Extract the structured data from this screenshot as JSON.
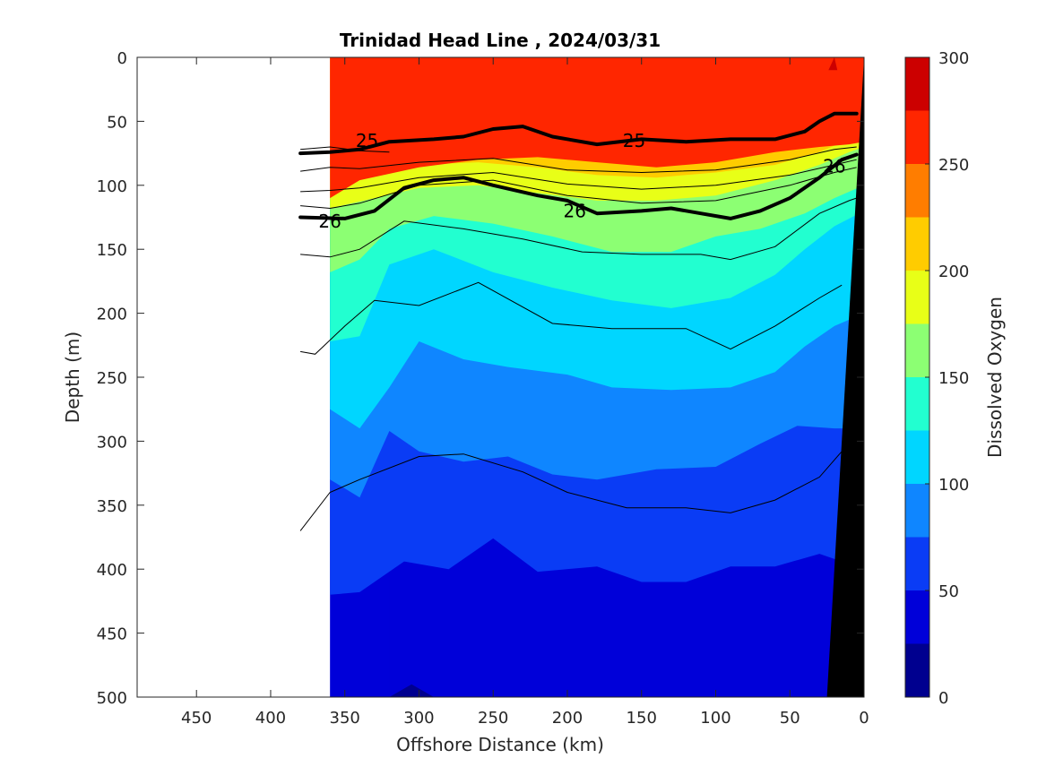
{
  "chart_data": {
    "type": "heatmap",
    "title": "Trinidad Head Line , 2024/03/31",
    "xlabel": "Offshore Distance (km)",
    "ylabel": "Depth (m)",
    "colorbar_label": "Dissolved Oxygen",
    "xlim": [
      490,
      0
    ],
    "ylim": [
      500,
      0
    ],
    "x_ticks": [
      {
        "value": 450,
        "label": "450"
      },
      {
        "value": 400,
        "label": "400"
      },
      {
        "value": 350,
        "label": "350"
      },
      {
        "value": 300,
        "label": "300"
      },
      {
        "value": 250,
        "label": "250"
      },
      {
        "value": 200,
        "label": "200"
      },
      {
        "value": 150,
        "label": "150"
      },
      {
        "value": 100,
        "label": "100"
      },
      {
        "value": 50,
        "label": "50"
      },
      {
        "value": 0,
        "label": "0"
      }
    ],
    "y_ticks": [
      {
        "value": 0,
        "label": "0"
      },
      {
        "value": 50,
        "label": "50"
      },
      {
        "value": 100,
        "label": "100"
      },
      {
        "value": 150,
        "label": "150"
      },
      {
        "value": 200,
        "label": "200"
      },
      {
        "value": 250,
        "label": "250"
      },
      {
        "value": 300,
        "label": "300"
      },
      {
        "value": 350,
        "label": "350"
      },
      {
        "value": 400,
        "label": "400"
      },
      {
        "value": 450,
        "label": "450"
      },
      {
        "value": 500,
        "label": "500"
      }
    ],
    "colorbar": {
      "range": [
        0,
        300
      ],
      "levels": [
        0,
        25,
        50,
        75,
        100,
        125,
        150,
        175,
        200,
        225,
        250,
        275,
        300
      ],
      "ticks": [
        {
          "value": 0,
          "label": "0"
        },
        {
          "value": 50,
          "label": "50"
        },
        {
          "value": 100,
          "label": "100"
        },
        {
          "value": 150,
          "label": "150"
        },
        {
          "value": 200,
          "label": "200"
        },
        {
          "value": 250,
          "label": "250"
        },
        {
          "value": 300,
          "label": "300"
        }
      ],
      "colors": [
        "#00008f",
        "#0000d9",
        "#0a3cf5",
        "#0f86ff",
        "#00d6ff",
        "#22ffd0",
        "#8cff73",
        "#e8ff17",
        "#ffcc00",
        "#ff7d00",
        "#ff2600",
        "#cc0000"
      ]
    },
    "data_extent_x": [
      0,
      360
    ],
    "oxygen_boundaries": [
      {
        "level": 275,
        "points": [
          [
            20,
            0
          ],
          [
            18,
            10
          ],
          [
            24,
            10
          ]
        ]
      },
      {
        "level": 250,
        "points": [
          [
            360,
            110
          ],
          [
            340,
            96
          ],
          [
            300,
            86
          ],
          [
            260,
            80
          ],
          [
            220,
            78
          ],
          [
            180,
            82
          ],
          [
            140,
            86
          ],
          [
            100,
            82
          ],
          [
            60,
            74
          ],
          [
            30,
            70
          ],
          [
            10,
            68
          ],
          [
            0,
            66
          ]
        ]
      },
      {
        "level": 225,
        "points": [
          [
            360,
            84
          ],
          [
            340,
            82
          ],
          [
            300,
            74
          ],
          [
            260,
            66
          ],
          [
            220,
            68
          ],
          [
            180,
            74
          ],
          [
            140,
            74
          ],
          [
            100,
            72
          ],
          [
            60,
            68
          ],
          [
            30,
            56
          ],
          [
            10,
            46
          ],
          [
            0,
            44
          ]
        ]
      },
      {
        "level": 200,
        "points": [
          [
            360,
            96
          ],
          [
            340,
            92
          ],
          [
            300,
            84
          ],
          [
            260,
            82
          ],
          [
            220,
            86
          ],
          [
            180,
            92
          ],
          [
            140,
            94
          ],
          [
            100,
            90
          ],
          [
            60,
            84
          ],
          [
            30,
            74
          ],
          [
            10,
            64
          ],
          [
            0,
            60
          ]
        ]
      },
      {
        "level": 175,
        "points": [
          [
            360,
            118
          ],
          [
            330,
            110
          ],
          [
            300,
            102
          ],
          [
            260,
            100
          ],
          [
            220,
            106
          ],
          [
            180,
            112
          ],
          [
            140,
            112
          ],
          [
            100,
            108
          ],
          [
            60,
            96
          ],
          [
            30,
            84
          ],
          [
            10,
            74
          ],
          [
            0,
            70
          ]
        ]
      },
      {
        "level": 150,
        "points": [
          [
            360,
            168
          ],
          [
            340,
            158
          ],
          [
            320,
            134
          ],
          [
            290,
            124
          ],
          [
            250,
            130
          ],
          [
            210,
            140
          ],
          [
            170,
            152
          ],
          [
            130,
            152
          ],
          [
            100,
            140
          ],
          [
            70,
            134
          ],
          [
            40,
            122
          ],
          [
            20,
            110
          ],
          [
            0,
            100
          ]
        ]
      },
      {
        "level": 125,
        "points": [
          [
            360,
            222
          ],
          [
            340,
            218
          ],
          [
            320,
            162
          ],
          [
            290,
            150
          ],
          [
            250,
            168
          ],
          [
            210,
            180
          ],
          [
            170,
            190
          ],
          [
            130,
            196
          ],
          [
            90,
            188
          ],
          [
            60,
            170
          ],
          [
            40,
            150
          ],
          [
            20,
            132
          ],
          [
            0,
            120
          ]
        ]
      },
      {
        "level": 100,
        "points": [
          [
            360,
            275
          ],
          [
            340,
            290
          ],
          [
            320,
            258
          ],
          [
            300,
            222
          ],
          [
            270,
            236
          ],
          [
            240,
            242
          ],
          [
            200,
            248
          ],
          [
            170,
            258
          ],
          [
            130,
            260
          ],
          [
            90,
            258
          ],
          [
            60,
            246
          ],
          [
            40,
            226
          ],
          [
            20,
            210
          ],
          [
            0,
            200
          ]
        ]
      },
      {
        "level": 75,
        "points": [
          [
            360,
            330
          ],
          [
            340,
            344
          ],
          [
            320,
            292
          ],
          [
            300,
            308
          ],
          [
            270,
            316
          ],
          [
            240,
            312
          ],
          [
            210,
            326
          ],
          [
            180,
            330
          ],
          [
            140,
            322
          ],
          [
            100,
            320
          ],
          [
            70,
            302
          ],
          [
            45,
            288
          ],
          [
            20,
            290
          ],
          [
            0,
            290
          ]
        ]
      },
      {
        "level": 50,
        "points": [
          [
            360,
            420
          ],
          [
            340,
            418
          ],
          [
            310,
            394
          ],
          [
            280,
            400
          ],
          [
            250,
            376
          ],
          [
            220,
            402
          ],
          [
            180,
            398
          ],
          [
            150,
            410
          ],
          [
            120,
            410
          ],
          [
            90,
            398
          ],
          [
            60,
            398
          ],
          [
            30,
            388
          ],
          [
            10,
            396
          ],
          [
            0,
            400
          ]
        ]
      },
      {
        "level": 25,
        "points": [
          [
            320,
            500
          ],
          [
            305,
            490
          ],
          [
            290,
            500
          ]
        ]
      }
    ],
    "density_contours": [
      {
        "points": [
          [
            380,
            72
          ],
          [
            360,
            70
          ],
          [
            340,
            73
          ],
          [
            320,
            74
          ]
        ]
      },
      {
        "points": [
          [
            380,
            89
          ],
          [
            360,
            86
          ],
          [
            340,
            87
          ],
          [
            300,
            82
          ],
          [
            250,
            79
          ],
          [
            200,
            88
          ],
          [
            150,
            90
          ],
          [
            100,
            88
          ],
          [
            50,
            80
          ],
          [
            20,
            72
          ],
          [
            5,
            70
          ]
        ]
      },
      {
        "points": [
          [
            380,
            105
          ],
          [
            360,
            104
          ],
          [
            340,
            102
          ],
          [
            300,
            94
          ],
          [
            250,
            90
          ],
          [
            200,
            99
          ],
          [
            150,
            103
          ],
          [
            100,
            100
          ],
          [
            50,
            92
          ],
          [
            20,
            84
          ],
          [
            5,
            80
          ]
        ]
      },
      {
        "points": [
          [
            380,
            116
          ],
          [
            360,
            118
          ],
          [
            340,
            114
          ],
          [
            300,
            100
          ],
          [
            250,
            96
          ],
          [
            200,
            108
          ],
          [
            150,
            114
          ],
          [
            100,
            112
          ],
          [
            50,
            100
          ],
          [
            20,
            90
          ],
          [
            5,
            86
          ]
        ]
      },
      {
        "points": [
          [
            380,
            154
          ],
          [
            360,
            156
          ],
          [
            340,
            150
          ],
          [
            310,
            128
          ],
          [
            270,
            134
          ],
          [
            230,
            142
          ],
          [
            190,
            152
          ],
          [
            150,
            154
          ],
          [
            110,
            154
          ],
          [
            90,
            158
          ],
          [
            60,
            148
          ],
          [
            30,
            122
          ],
          [
            10,
            112
          ],
          [
            0,
            108
          ]
        ]
      },
      {
        "points": [
          [
            380,
            230
          ],
          [
            370,
            232
          ],
          [
            350,
            210
          ],
          [
            330,
            190
          ],
          [
            300,
            194
          ],
          [
            260,
            176
          ],
          [
            210,
            208
          ],
          [
            170,
            212
          ],
          [
            120,
            212
          ],
          [
            90,
            228
          ],
          [
            60,
            210
          ],
          [
            30,
            188
          ],
          [
            15,
            178
          ]
        ]
      },
      {
        "points": [
          [
            380,
            370
          ],
          [
            360,
            340
          ],
          [
            340,
            330
          ],
          [
            300,
            312
          ],
          [
            270,
            310
          ],
          [
            230,
            324
          ],
          [
            200,
            340
          ],
          [
            160,
            352
          ],
          [
            120,
            352
          ],
          [
            90,
            356
          ],
          [
            60,
            346
          ],
          [
            30,
            328
          ],
          [
            15,
            308
          ]
        ]
      }
    ],
    "sigma_contours": [
      {
        "label": "25",
        "label_at": [
          335,
          65
        ],
        "points": [
          [
            380,
            75
          ],
          [
            360,
            74
          ],
          [
            340,
            72
          ],
          [
            320,
            66
          ],
          [
            290,
            64
          ],
          [
            270,
            62
          ],
          [
            250,
            56
          ],
          [
            230,
            54
          ],
          [
            210,
            62
          ],
          [
            180,
            68
          ],
          [
            150,
            64
          ],
          [
            120,
            66
          ],
          [
            90,
            64
          ],
          [
            60,
            64
          ],
          [
            40,
            58
          ],
          [
            30,
            50
          ],
          [
            20,
            44
          ],
          [
            5,
            44
          ]
        ]
      },
      {
        "label": "26",
        "label_at": [
          360,
          128
        ],
        "points": [
          [
            380,
            125
          ],
          [
            350,
            126
          ],
          [
            330,
            120
          ],
          [
            310,
            102
          ],
          [
            290,
            96
          ],
          [
            270,
            94
          ],
          [
            250,
            100
          ],
          [
            220,
            108
          ],
          [
            200,
            112
          ],
          [
            180,
            122
          ],
          [
            150,
            120
          ],
          [
            130,
            118
          ],
          [
            110,
            122
          ],
          [
            90,
            126
          ],
          [
            70,
            120
          ],
          [
            50,
            110
          ],
          [
            30,
            94
          ],
          [
            15,
            80
          ],
          [
            5,
            76
          ]
        ]
      }
    ],
    "label_positions": [
      {
        "text": "25",
        "at": [
          335,
          65
        ]
      },
      {
        "text": "25",
        "at": [
          155,
          65
        ]
      },
      {
        "text": "26",
        "at": [
          360,
          128
        ]
      },
      {
        "text": "26",
        "at": [
          195,
          120
        ]
      },
      {
        "text": "26",
        "at": [
          20,
          85
        ]
      }
    ],
    "bathymetry": {
      "points": [
        [
          0,
          0
        ],
        [
          25,
          500
        ],
        [
          0,
          500
        ]
      ],
      "color": "#000000"
    }
  }
}
